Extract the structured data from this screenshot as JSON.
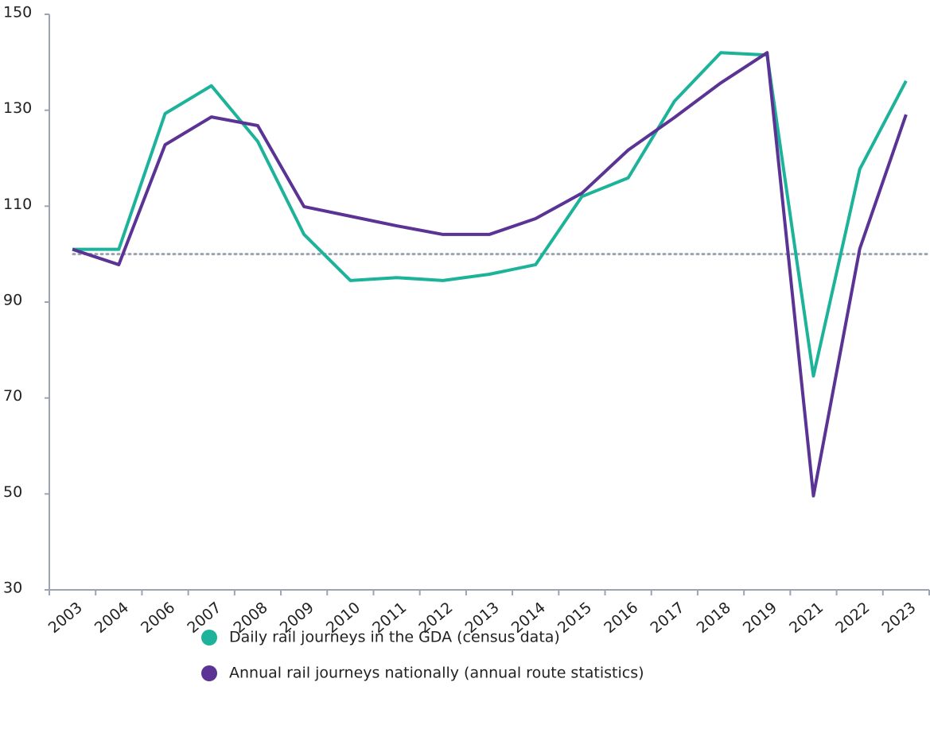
{
  "chart_data": {
    "type": "line",
    "categories": [
      "2003",
      "2004",
      "2006",
      "2007",
      "2008",
      "2009",
      "2010",
      "2011",
      "2012",
      "2013",
      "2014",
      "2015",
      "2016",
      "2017",
      "2018",
      "2019",
      "2021",
      "2022",
      "2023"
    ],
    "series": [
      {
        "name": "Daily rail journeys in the GDA (census data)",
        "color": "#1db39b",
        "values": [
          101,
          101,
          129.3,
          135.1,
          123.5,
          104.1,
          94.5,
          95.1,
          94.5,
          95.8,
          97.8,
          112,
          115.9,
          131.9,
          142,
          141.5,
          74.6,
          117.7,
          136.1
        ]
      },
      {
        "name": "Annual rail journeys nationally (annual route statistics)",
        "color": "#5a3394",
        "values": [
          101,
          97.8,
          122.8,
          128.6,
          126.8,
          109.9,
          107.9,
          105.9,
          104.1,
          104.1,
          107.4,
          112.7,
          121.7,
          128.5,
          135.7,
          142,
          49.6,
          101.1,
          129.1
        ]
      }
    ],
    "reference_line": 100,
    "ylim": [
      30,
      150
    ],
    "yticks": [
      30,
      50,
      70,
      90,
      110,
      130,
      150
    ],
    "legend": "bottom"
  }
}
